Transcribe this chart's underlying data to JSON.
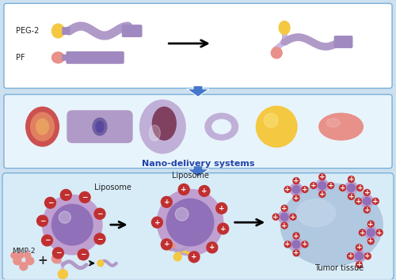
{
  "bg_color": "#cce0f0",
  "panel1_bg": "#ffffff",
  "panel2_bg": "#e8f4fc",
  "panel3_bg": "#d8ecf8",
  "border_color": "#7ab0d8",
  "text_peg2": "PEG-2",
  "text_pf": "PF",
  "text_nano": "Nano-delivery systems",
  "text_liposome1": "Liposome",
  "text_liposome2": "Liposome",
  "text_mmp2": "MMP-2",
  "text_tumor": "Tumor tissue",
  "yellow_color": "#f5c842",
  "pink_color": "#e8908a",
  "purple_color": "#b09ac8",
  "purple_mid": "#a088c0",
  "purple_dark": "#8870b0",
  "purple_light": "#c8b8e0",
  "red_charge_color": "#c03030",
  "tumor_color": "#b0c8e0",
  "nano_red_outer": "#cc5050",
  "nano_red_inner": "#e08060",
  "nano_tube_color": "#b09ac8",
  "nano_tube_dark": "#7060a0",
  "nano_oval_outer": "#c0b0d8",
  "nano_oval_inner": "#804060",
  "nano_ring_color": "#c0b0d8",
  "nano_yellow": "#f5c842",
  "nano_pink": "#e8908a",
  "arrow_blue": "#4477cc",
  "lipo_outer": "#c0a0d0",
  "lipo_inner": "#9070b8",
  "lipo_core": "#7858a8"
}
